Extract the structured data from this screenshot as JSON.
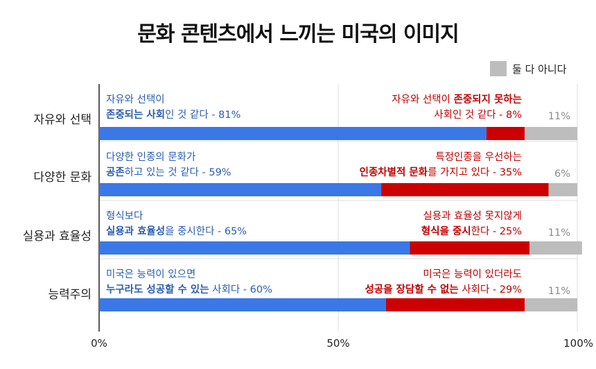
{
  "title": "문화 콘텐츠에서 느끼는 미국의 이미지",
  "legend": {
    "label": "둘 다 아니다",
    "color": "#bdbdbd"
  },
  "colors": {
    "positive": "#3b78e7",
    "negative": "#cc0000",
    "neither": "#bdbdbd"
  },
  "chart_data": {
    "type": "bar",
    "orientation": "horizontal-stacked-100",
    "title": "문화 콘텐츠에서 느끼는 미국의 이미지",
    "categories": [
      "자유와 선택",
      "다양한 문화",
      "실용과 효율성",
      "능력주의"
    ],
    "series": [
      {
        "values": [
          81,
          59,
          65,
          60
        ],
        "color": "#3b78e7"
      },
      {
        "values": [
          8,
          35,
          25,
          29
        ],
        "color": "#cc0000"
      },
      {
        "name": "둘 다 아니다",
        "values": [
          11,
          6,
          11,
          11
        ],
        "color": "#bdbdbd"
      }
    ],
    "xlim": [
      0,
      100
    ],
    "xticks": [
      "0%",
      "50%",
      "100%"
    ],
    "legend_position": "top-right",
    "grid": "vertical",
    "annotations": [
      {
        "pos": [
          [
            "자유와 선택이"
          ],
          [
            [
              "존중되는 사회",
              true
            ],
            [
              "인 것 같다 - 81%",
              false
            ]
          ]
        ],
        "neg": [
          [
            [
              "자유와 선택이 ",
              false
            ],
            [
              "존중되지 못하는",
              true
            ]
          ],
          [
            [
              "사회인 것 같다 - 8%",
              false
            ]
          ]
        ],
        "neither": "11%"
      },
      {
        "pos": [
          [
            "다양한 인종의 문화가"
          ],
          [
            [
              "공존",
              true
            ],
            [
              "하고 있는 것 같다 - 59%",
              false
            ]
          ]
        ],
        "neg": [
          [
            [
              "특정인종을 우선하는",
              false
            ]
          ],
          [
            [
              "인종차별적 문화",
              true
            ],
            [
              "를 가지고 있다 - 35%",
              false
            ]
          ]
        ],
        "neither": "6%"
      },
      {
        "pos": [
          [
            "형식보다"
          ],
          [
            [
              "실용과 효율성",
              true
            ],
            [
              "을 중시한다 - 65%",
              false
            ]
          ]
        ],
        "neg": [
          [
            [
              "실용과 효율성 못지않게",
              false
            ]
          ],
          [
            [
              "형식을 중시",
              true
            ],
            [
              "한다 - 25%",
              false
            ]
          ]
        ],
        "neither": "11%"
      },
      {
        "pos": [
          [
            "미국은 능력이 있으면"
          ],
          [
            [
              "누구라도 성공할 수 있는",
              true
            ],
            [
              " 사회다 - 60%",
              false
            ]
          ]
        ],
        "neg": [
          [
            [
              "미국은 능력이 있더라도",
              false
            ]
          ],
          [
            [
              "성공을 장담할 수 없는",
              true
            ],
            [
              " 사회다 - 29%",
              false
            ]
          ]
        ],
        "neither": "11%"
      }
    ]
  }
}
